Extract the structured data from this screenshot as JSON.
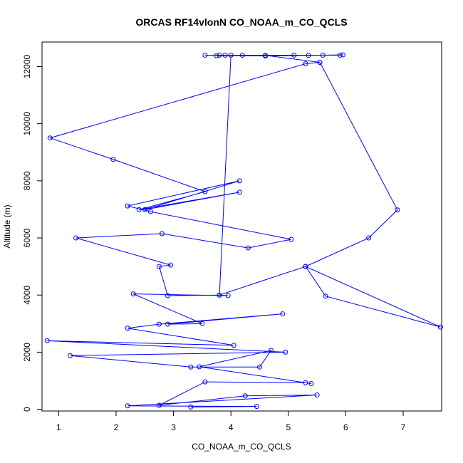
{
  "chart_data": {
    "type": "line",
    "title": "ORCAS RF14vlonN CO_NOAA_m_CO_QCLS",
    "xlabel": "CO_NOAA_m_CO_QCLS",
    "ylabel": "Altitude (m)",
    "xlim": [
      0.71,
      7.67
    ],
    "ylim": [
      -60,
      12860
    ],
    "xticks": [
      1,
      2,
      3,
      4,
      5,
      6,
      7
    ],
    "yticks": [
      0,
      2000,
      4000,
      6000,
      8000,
      10000,
      12000
    ],
    "color": "#0000ff",
    "marker": "open-circle",
    "grid": false,
    "legend": false,
    "series": [
      {
        "x": [
          3.3,
          4.45,
          2.2,
          5.5,
          4.25,
          2.75,
          3.55,
          5.3,
          5.4,
          3.45,
          4.7,
          4.5,
          3.3,
          1.2,
          4.95,
          0.8,
          4.05,
          2.2,
          2.75,
          4.9,
          2.9,
          3.5,
          2.3,
          3.95,
          3.8,
          2.9,
          2.75,
          2.95,
          1.3,
          2.8,
          4.3,
          5.05,
          2.6,
          2.2,
          4.15,
          2.5,
          4.15,
          2.4,
          3.55,
          1.95,
          0.85,
          5.3,
          5.55,
          4.6,
          3.9,
          3.8,
          3.75,
          4.2,
          5.1,
          5.35,
          5.6,
          5.95,
          4.6,
          3.55,
          5.9,
          4.0,
          3.8,
          5.3,
          7.65,
          5.65,
          5.3,
          6.4,
          6.9,
          5.55
        ],
        "y": [
          80,
          100,
          120,
          500,
          470,
          140,
          960,
          930,
          900,
          1490,
          2060,
          1480,
          1480,
          1880,
          2000,
          2400,
          2240,
          2840,
          2980,
          3340,
          2980,
          3000,
          4040,
          3980,
          4000,
          3980,
          5000,
          5050,
          6000,
          6150,
          5650,
          5950,
          6920,
          7120,
          8000,
          6990,
          7600,
          6990,
          7620,
          8750,
          9500,
          12100,
          12150,
          12390,
          12400,
          12400,
          12380,
          12400,
          12400,
          12390,
          12400,
          12410,
          12370,
          12400,
          12400,
          12400,
          4000,
          5000,
          2880,
          3960,
          5000,
          6000,
          6980,
          12150
        ]
      }
    ]
  }
}
